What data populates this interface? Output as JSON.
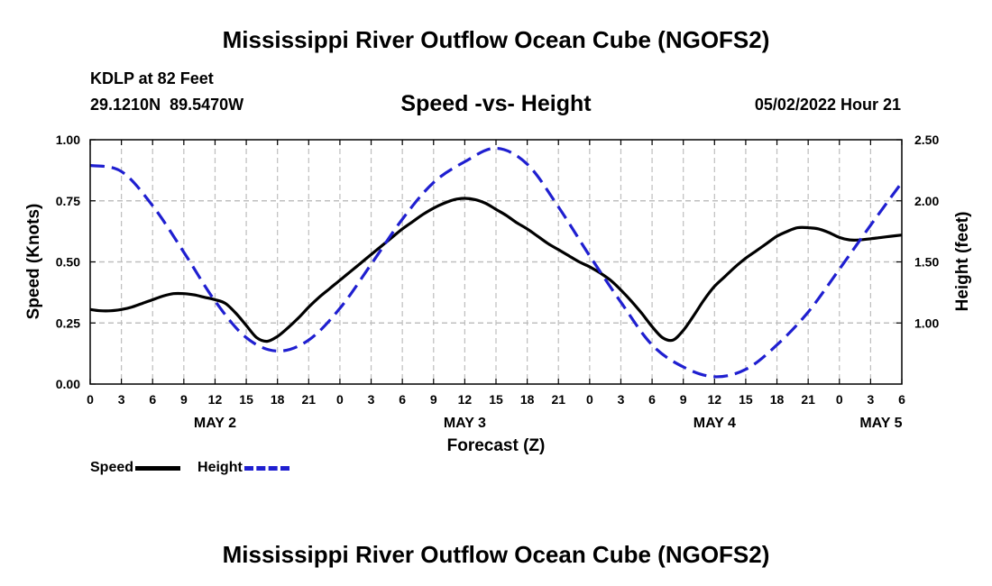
{
  "header": {
    "title": "Mississippi River Outflow Ocean Cube (NGOFS2)",
    "station": "KDLP at 82 Feet",
    "coords": "29.1210N  89.5470W",
    "subtitle": "Speed -vs- Height",
    "datetime": "05/02/2022 Hour 21",
    "footer_title": "Mississippi River Outflow Ocean Cube (NGOFS2)"
  },
  "legend": {
    "speed_label": "Speed",
    "height_label": "Height"
  },
  "colors": {
    "speed": "#000000",
    "height": "#1f1fd0",
    "grid": "#bdbdbd"
  },
  "chart_data": {
    "type": "line",
    "title": "Speed -vs- Height",
    "xlabel": "Forecast (Z)",
    "ylabel": "Speed (Knots)",
    "y2label": "Height (feet)",
    "xlim": [
      0,
      78
    ],
    "ylim": [
      0,
      1.0
    ],
    "y2lim": [
      0.5,
      2.5
    ],
    "x_tick_values": [
      0,
      3,
      6,
      9,
      12,
      15,
      18,
      21,
      24,
      27,
      30,
      33,
      36,
      39,
      42,
      45,
      48,
      51,
      54,
      57,
      60,
      63,
      66,
      69,
      72,
      75,
      78
    ],
    "x_tick_labels": [
      "0",
      "3",
      "6",
      "9",
      "12",
      "15",
      "18",
      "21",
      "0",
      "3",
      "6",
      "9",
      "12",
      "15",
      "18",
      "21",
      "0",
      "3",
      "6",
      "9",
      "12",
      "15",
      "18",
      "21",
      "0",
      "3",
      "6"
    ],
    "y_ticks": [
      "0.00",
      "0.25",
      "0.50",
      "0.75",
      "1.00"
    ],
    "y2_ticks": [
      "1.00",
      "1.50",
      "2.00",
      "2.50"
    ],
    "day_labels": [
      {
        "label": "MAY 2",
        "x": 12
      },
      {
        "label": "MAY 3",
        "x": 36
      },
      {
        "label": "MAY 4",
        "x": 60
      },
      {
        "label": "MAY 5",
        "x": 76
      }
    ],
    "series": [
      {
        "name": "Speed",
        "axis": "left",
        "style": "solid",
        "x": [
          0,
          1,
          2,
          3,
          4,
          5,
          6,
          7,
          8,
          9,
          10,
          11,
          12,
          13,
          14,
          15,
          16,
          17,
          18,
          19,
          20,
          21,
          22,
          23,
          24,
          25,
          26,
          27,
          28,
          29,
          30,
          31,
          32,
          33,
          34,
          35,
          36,
          37,
          38,
          39,
          40,
          41,
          42,
          43,
          44,
          45,
          46,
          47,
          48,
          49,
          50,
          51,
          52,
          53,
          54,
          55,
          56,
          57,
          58,
          59,
          60,
          61,
          62,
          63,
          64,
          65,
          66,
          67,
          68,
          69,
          70,
          71,
          72,
          73,
          74,
          75,
          76,
          77,
          78
        ],
        "values": [
          0.305,
          0.3,
          0.3,
          0.305,
          0.315,
          0.33,
          0.345,
          0.36,
          0.37,
          0.37,
          0.365,
          0.355,
          0.345,
          0.33,
          0.29,
          0.24,
          0.19,
          0.175,
          0.195,
          0.23,
          0.27,
          0.315,
          0.355,
          0.39,
          0.425,
          0.46,
          0.495,
          0.53,
          0.565,
          0.6,
          0.635,
          0.665,
          0.695,
          0.72,
          0.74,
          0.755,
          0.76,
          0.755,
          0.74,
          0.715,
          0.69,
          0.66,
          0.635,
          0.605,
          0.575,
          0.55,
          0.525,
          0.5,
          0.48,
          0.455,
          0.425,
          0.385,
          0.34,
          0.29,
          0.235,
          0.19,
          0.18,
          0.22,
          0.28,
          0.345,
          0.4,
          0.44,
          0.48,
          0.515,
          0.545,
          0.575,
          0.605,
          0.625,
          0.64,
          0.64,
          0.635,
          0.62,
          0.6,
          0.59,
          0.59,
          0.595,
          0.6,
          0.605,
          0.61
        ]
      },
      {
        "name": "Height",
        "axis": "right",
        "style": "dashed",
        "x": [
          0,
          3,
          6,
          9,
          12,
          15,
          18,
          21,
          24,
          27,
          30,
          33,
          36,
          39,
          42,
          45,
          48,
          51,
          54,
          57,
          60,
          63,
          66,
          69,
          72,
          75,
          78
        ],
        "values": [
          2.29,
          2.24,
          1.96,
          1.58,
          1.18,
          0.88,
          0.77,
          0.86,
          1.12,
          1.48,
          1.85,
          2.15,
          2.32,
          2.43,
          2.3,
          1.95,
          1.55,
          1.17,
          0.82,
          0.64,
          0.56,
          0.62,
          0.82,
          1.09,
          1.44,
          1.8,
          2.15
        ]
      }
    ]
  }
}
